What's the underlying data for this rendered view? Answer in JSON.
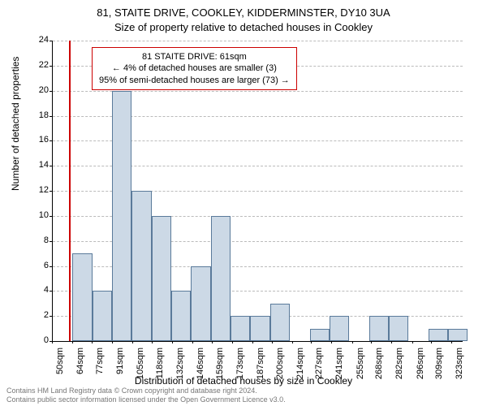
{
  "title_line1": "81, STAITE DRIVE, COOKLEY, KIDDERMINSTER, DY10 3UA",
  "title_line2": "Size of property relative to detached houses in Cookley",
  "ylabel": "Number of detached properties",
  "xlabel": "Distribution of detached houses by size in Cookley",
  "chart": {
    "type": "histogram",
    "ylim": [
      0,
      24
    ],
    "ytick_step": 2,
    "yticks": [
      0,
      2,
      4,
      6,
      8,
      10,
      12,
      14,
      16,
      18,
      20,
      22,
      24
    ],
    "xlim": [
      50,
      330
    ],
    "xticks": [
      50,
      64,
      77,
      91,
      105,
      118,
      132,
      146,
      159,
      173,
      187,
      200,
      214,
      227,
      241,
      255,
      268,
      282,
      296,
      309,
      323
    ],
    "xtick_suffix": "sqm",
    "bar_color": "#ccd9e6",
    "bar_border_color": "#5a7a9a",
    "grid_color": "#bbbbbb",
    "background_color": "#ffffff",
    "marker_color": "#cc0000",
    "marker_x": 61,
    "bin_width": 13.5,
    "bins_start": 50,
    "values": [
      0,
      7,
      4,
      20,
      12,
      10,
      4,
      6,
      10,
      2,
      2,
      3,
      0,
      1,
      2,
      0,
      2,
      2,
      0,
      1,
      1
    ],
    "annotation": {
      "lines": [
        "81 STAITE DRIVE: 61sqm",
        "← 4% of detached houses are smaller (3)",
        "95% of semi-detached houses are larger (73) →"
      ],
      "border_color": "#cc0000",
      "font_size": 11
    }
  },
  "footer_line1": "Contains HM Land Registry data © Crown copyright and database right 2024.",
  "footer_line2": "Contains public sector information licensed under the Open Government Licence v3.0."
}
